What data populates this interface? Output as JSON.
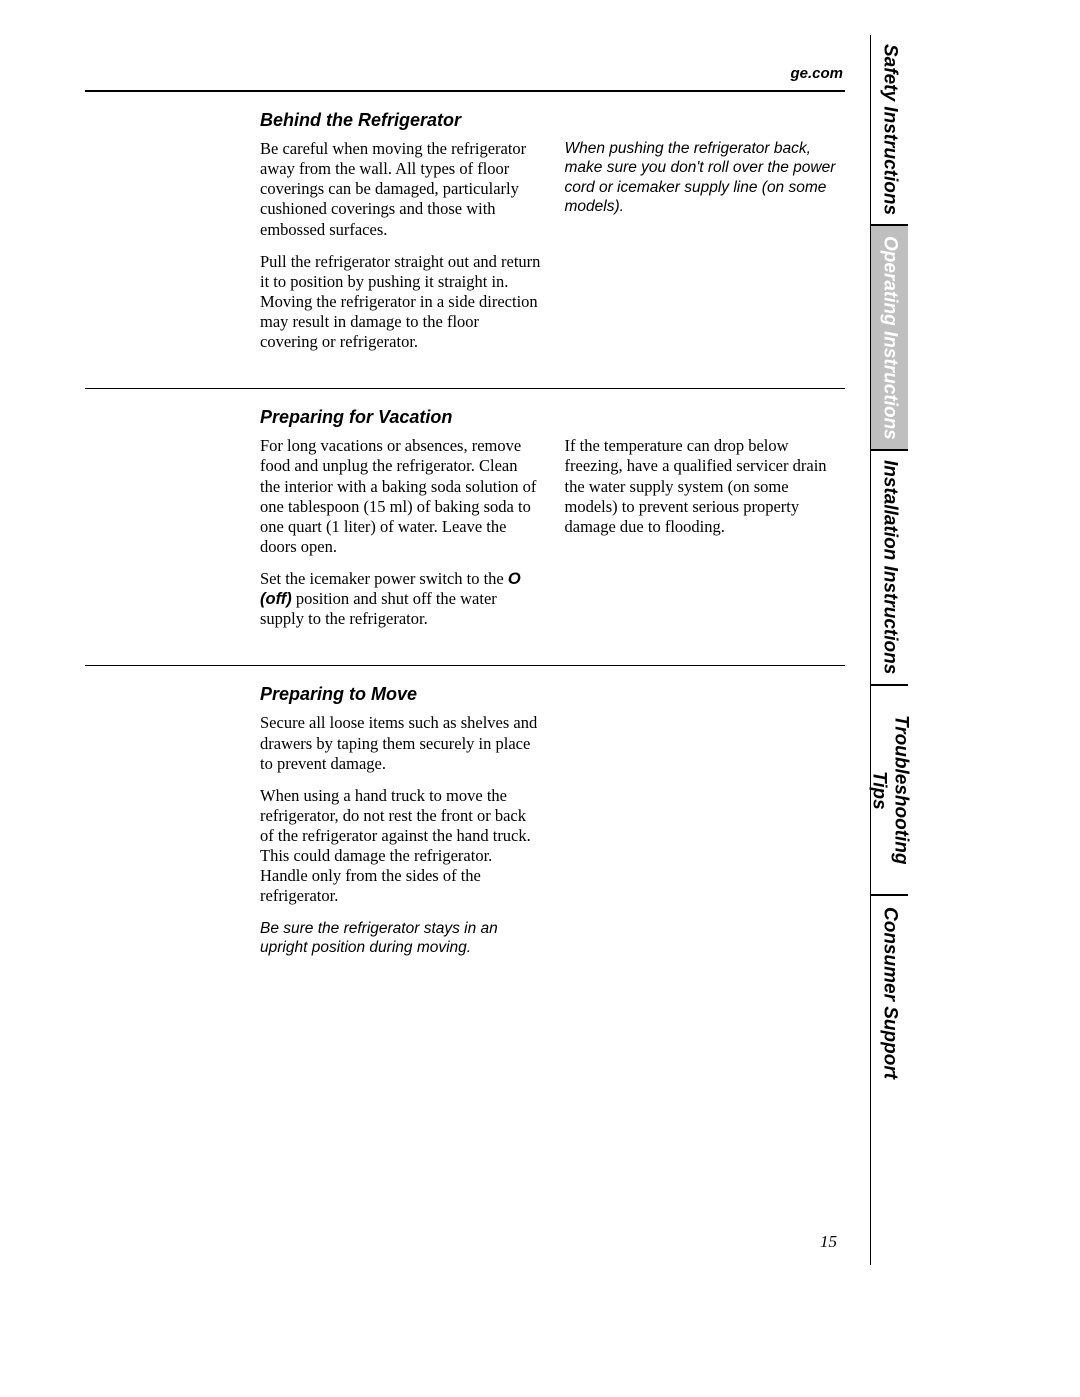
{
  "header": {
    "url": "ge.com"
  },
  "sections": {
    "behind": {
      "title": "Behind the Refrigerator",
      "left_p1": "Be careful when moving the refrigerator away from the wall. All types of floor coverings can be damaged, particularly cushioned coverings and those with embossed surfaces.",
      "left_p2": "Pull the refrigerator straight out and return it to position by pushing it straight in. Moving the refrigerator in a side direction may result in damage to the floor covering or refrigerator.",
      "right_note": "When pushing the refrigerator back, make sure you don't roll over the power cord or icemaker supply line (on some models)."
    },
    "vacation": {
      "title": "Preparing for Vacation",
      "left_p1": "For long vacations or absences, remove food and unplug the refrigerator. Clean the interior with a baking soda solution of one tablespoon (15 ml) of baking soda to one quart (1 liter) of water. Leave the doors open.",
      "left_p2a": "Set the icemaker power switch to the ",
      "left_p2_bold": "O (off)",
      "left_p2b": " position and shut off the water supply to the refrigerator.",
      "right_p1": "If the temperature can drop below freezing, have a qualified servicer drain the water supply system (on some models) to prevent serious property damage due to flooding."
    },
    "move": {
      "title": "Preparing to Move",
      "p1": "Secure all loose items such as shelves and drawers by taping them securely in place to prevent damage.",
      "p2": "When using a hand truck to move the refrigerator, do not rest the front or back of the refrigerator against the hand truck. This could damage the refrigerator. Handle only from the sides of the refrigerator.",
      "note": "Be sure the refrigerator stays in an upright position during moving."
    }
  },
  "tabs": {
    "t1": "Safety Instructions",
    "t2": "Operating Instructions",
    "t3": "Installation Instructions",
    "t4": "Troubleshooting Tips",
    "t5": "Consumer Support"
  },
  "page_number": "15"
}
